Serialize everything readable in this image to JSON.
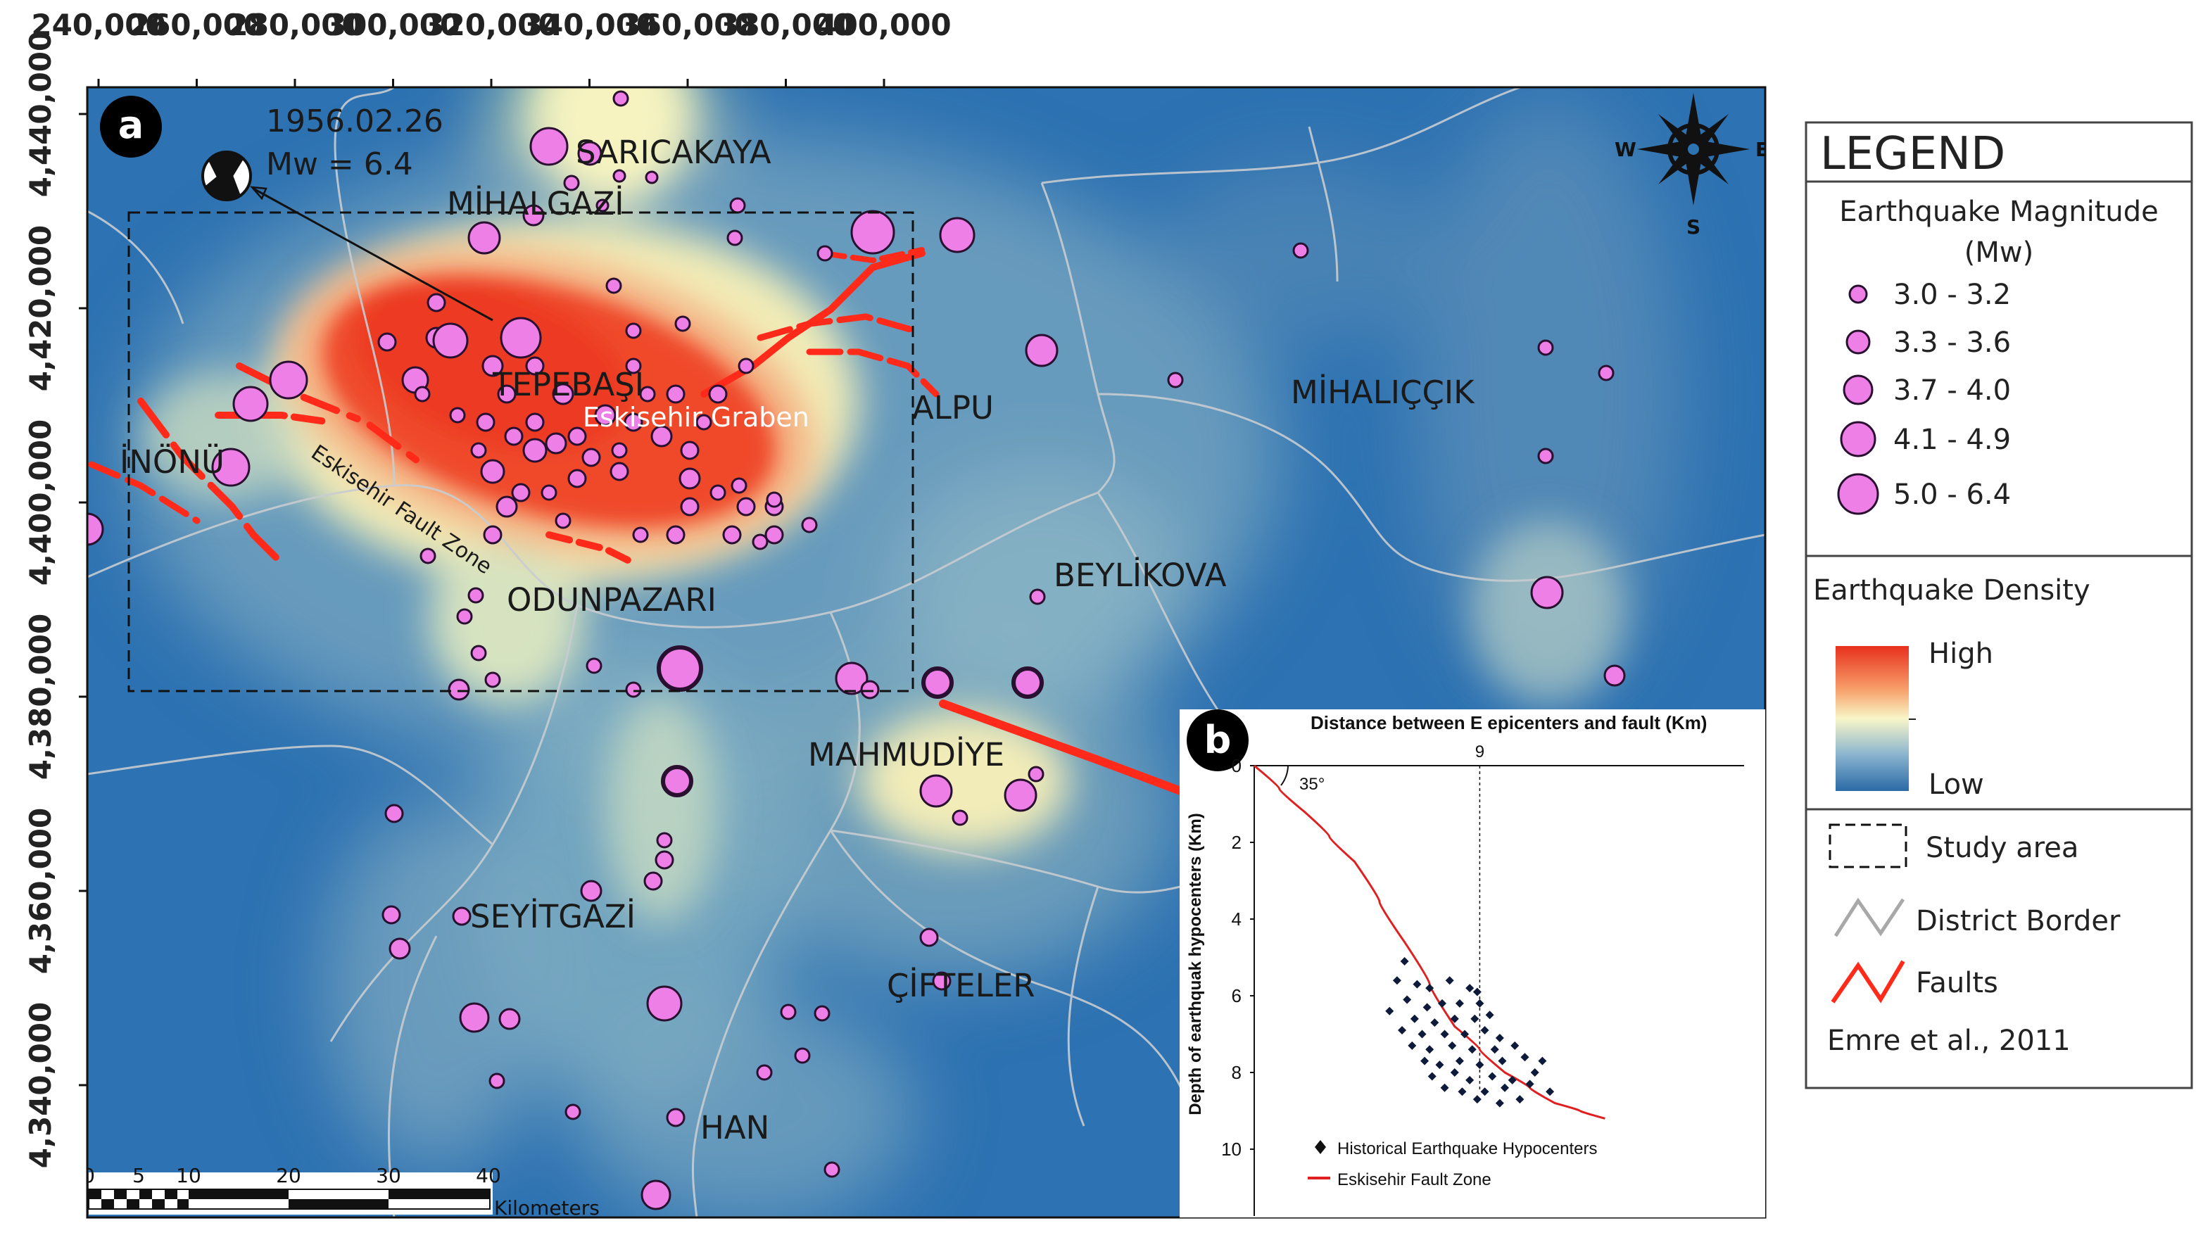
{
  "panel_labels": {
    "map": "a",
    "inset": "b"
  },
  "event": {
    "date": "1956.02.26",
    "magnitude": "Mw = 6.4"
  },
  "top_axis_ticks": [
    "240,000",
    "260,000",
    "280,000",
    "300,000",
    "320,000",
    "340,000",
    "360,000",
    "380,000",
    "400,000"
  ],
  "left_axis_ticks": [
    "4,440,000",
    "4,420,000",
    "4,400,000",
    "4,380,000",
    "4,360,000",
    "4,340,000"
  ],
  "places": [
    {
      "name": "SARICAKAYA"
    },
    {
      "name": "MİHALGAZİ"
    },
    {
      "name": "TEPEBAŞI"
    },
    {
      "name": "ALPU"
    },
    {
      "name": "MİHALIÇÇIK"
    },
    {
      "name": "İNÖNÜ"
    },
    {
      "name": "ODUNPAZARI"
    },
    {
      "name": "BEYLİKOVA"
    },
    {
      "name": "MAHMUDİYE"
    },
    {
      "name": "SEYİTGAZİ"
    },
    {
      "name": "ÇİFTELER"
    },
    {
      "name": "HAN"
    }
  ],
  "features": {
    "graben": "Eskisehir Graben",
    "fault_zone": "Eskisehir Fault Zone"
  },
  "scalebar": {
    "ticks": [
      "0",
      "5",
      "10",
      "20",
      "30",
      "40"
    ],
    "unit": "Kilometers"
  },
  "compass": {
    "west": "W",
    "east": "E",
    "south": "S"
  },
  "legend": {
    "title": "LEGEND",
    "magnitude_title_1": "Earthquake Magnitude",
    "magnitude_title_2": "(Mw)",
    "magnitude_classes": [
      "3.0 - 3.2",
      "3.3 - 3.6",
      "3.7 - 4.0",
      "4.1 - 4.9",
      "5.0 - 6.4"
    ],
    "density_title": "Earthquake Density",
    "density_high": "High",
    "density_low": "Low",
    "study_area": "Study area",
    "district_border": "District Border",
    "faults": "Faults",
    "source": "Emre et al., 2011",
    "colors": {
      "fault": "#ff2a1a",
      "epicenter": "#ee7fe6",
      "border": "#b0b0b0"
    }
  },
  "inset_chart": {
    "title": "Distance between E epicenters and fault (Km)",
    "ylabel": "Depth of earthquak hypocenters (Km)",
    "angle_label": "35°",
    "x_marker_label": "9",
    "y_ticks": [
      "0",
      "2",
      "4",
      "6",
      "8",
      "10"
    ],
    "legend_points": "Historical Earthquake Hypocenters",
    "legend_line": "Eskisehir Fault Zone"
  },
  "chart_data": {
    "type": "scatter",
    "title": "Distance between E epicenters and fault (Km)",
    "xlabel": "",
    "ylabel": "Depth of earthquak hypocenters (Km)",
    "ylim": [
      0,
      11.5
    ],
    "y_reversed": true,
    "marker_x": 9,
    "series": [
      {
        "name": "Historical Earthquake Hypocenters",
        "points": [
          [
            6.0,
            5.1
          ],
          [
            5.7,
            5.6
          ],
          [
            6.5,
            5.7
          ],
          [
            7.0,
            5.8
          ],
          [
            7.8,
            5.6
          ],
          [
            8.6,
            5.8
          ],
          [
            8.9,
            5.9
          ],
          [
            6.1,
            6.1
          ],
          [
            6.9,
            6.3
          ],
          [
            7.5,
            6.2
          ],
          [
            8.2,
            6.2
          ],
          [
            9.0,
            6.2
          ],
          [
            5.4,
            6.4
          ],
          [
            6.4,
            6.6
          ],
          [
            7.2,
            6.7
          ],
          [
            8.0,
            6.6
          ],
          [
            8.8,
            6.6
          ],
          [
            9.4,
            6.5
          ],
          [
            5.9,
            6.9
          ],
          [
            6.7,
            7.0
          ],
          [
            7.6,
            7.0
          ],
          [
            8.4,
            7.0
          ],
          [
            9.2,
            6.9
          ],
          [
            9.8,
            7.1
          ],
          [
            6.3,
            7.3
          ],
          [
            7.0,
            7.4
          ],
          [
            7.9,
            7.3
          ],
          [
            8.7,
            7.4
          ],
          [
            9.6,
            7.4
          ],
          [
            10.4,
            7.3
          ],
          [
            6.8,
            7.7
          ],
          [
            7.4,
            7.8
          ],
          [
            8.2,
            7.7
          ],
          [
            9.0,
            7.8
          ],
          [
            9.9,
            7.7
          ],
          [
            10.8,
            7.6
          ],
          [
            7.1,
            8.1
          ],
          [
            8.0,
            8.0
          ],
          [
            8.6,
            8.2
          ],
          [
            9.5,
            8.1
          ],
          [
            10.3,
            8.2
          ],
          [
            11.2,
            8.0
          ],
          [
            8.3,
            8.5
          ],
          [
            9.2,
            8.5
          ],
          [
            10.0,
            8.4
          ],
          [
            11.0,
            8.3
          ],
          [
            11.5,
            7.7
          ],
          [
            10.6,
            8.7
          ],
          [
            11.8,
            8.5
          ],
          [
            9.8,
            8.8
          ],
          [
            7.6,
            8.4
          ],
          [
            8.9,
            8.7
          ]
        ]
      }
    ],
    "line": {
      "name": "Eskisehir Fault Zone",
      "points": [
        [
          0,
          0
        ],
        [
          2,
          1.2
        ],
        [
          4,
          2.5
        ],
        [
          6,
          4.6
        ],
        [
          8,
          6.8
        ],
        [
          10,
          8.0
        ],
        [
          12,
          8.8
        ],
        [
          14,
          9.2
        ]
      ]
    }
  }
}
